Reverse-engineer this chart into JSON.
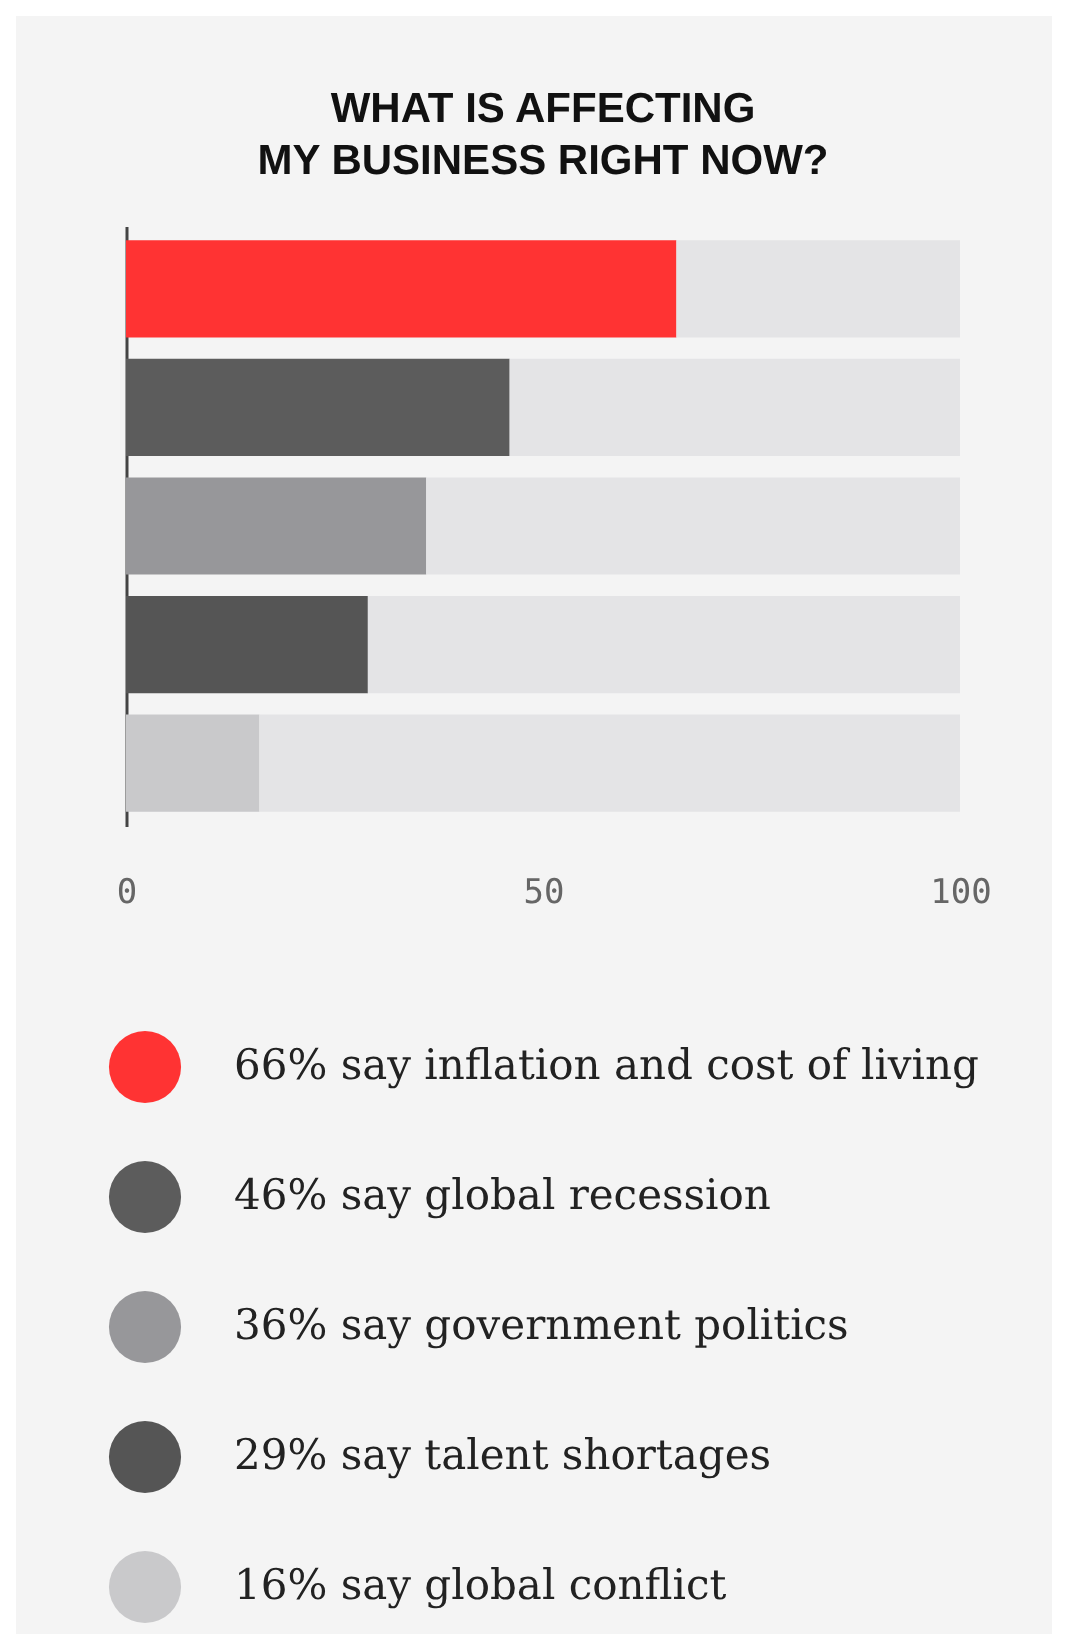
{
  "chart_data": {
    "type": "bar",
    "orientation": "horizontal",
    "stacked": true,
    "title": "WHAT IS AFFECTING\nMY BUSINESS RIGHT NOW?",
    "categories": [
      null,
      null,
      null,
      null,
      null
    ],
    "series": [
      {
        "name": "66% say inflation and cost of living",
        "color": "#ff3333",
        "values": [
          66,
          null,
          null,
          null,
          null
        ]
      },
      {
        "name": "46% say global recession",
        "color": "#5c5c5c",
        "values": [
          null,
          46,
          null,
          null,
          null
        ]
      },
      {
        "name": "36% say government politics",
        "color": "#97979a",
        "values": [
          null,
          null,
          36,
          null,
          null
        ]
      },
      {
        "name": "29% say talent shortages",
        "color": "#555555",
        "values": [
          null,
          null,
          null,
          29,
          null
        ]
      },
      {
        "name": "16% say global conflict",
        "color": "#c9c9cb",
        "values": [
          null,
          null,
          null,
          null,
          16
        ]
      },
      {
        "color": "#e4e4e6",
        "values": [
          34,
          54,
          64,
          71,
          84
        ]
      }
    ],
    "xlim": [
      0,
      100
    ],
    "xticks": [
      0,
      50,
      100
    ],
    "tick_labels": "x",
    "legend": "bottom"
  }
}
